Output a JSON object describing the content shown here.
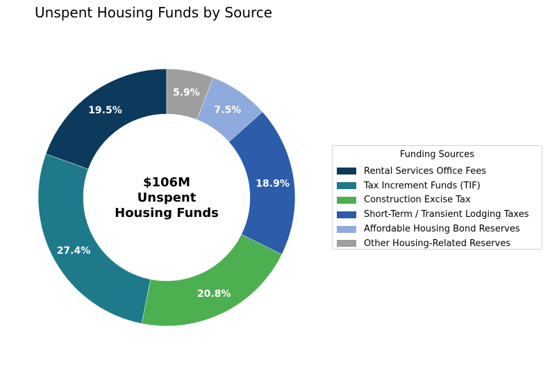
{
  "chart_data": {
    "type": "pie",
    "title": "Unspent Housing Funds by Source",
    "center_label": [
      "$106M",
      "Unspent",
      "Housing Funds"
    ],
    "legend_title": "Funding Sources",
    "legend_position": "right",
    "slices": [
      {
        "name": "Rental Services Office Fees",
        "value": 19.5,
        "label": "19.5%",
        "color": "#0b3a5c"
      },
      {
        "name": "Tax Increment Funds (TIF)",
        "value": 27.4,
        "label": "27.4%",
        "color": "#1e7a8a"
      },
      {
        "name": "Construction Excise Tax",
        "value": 20.8,
        "label": "20.8%",
        "color": "#4caf50"
      },
      {
        "name": "Short-Term / Transient Lodging Taxes",
        "value": 18.9,
        "label": "18.9%",
        "color": "#2c5caa"
      },
      {
        "name": "Affordable Housing Bond Reserves",
        "value": 7.5,
        "label": "7.5%",
        "color": "#8faadc"
      },
      {
        "name": "Other Housing-Related Reserves",
        "value": 5.9,
        "label": "5.9%",
        "color": "#9e9e9e"
      }
    ]
  }
}
